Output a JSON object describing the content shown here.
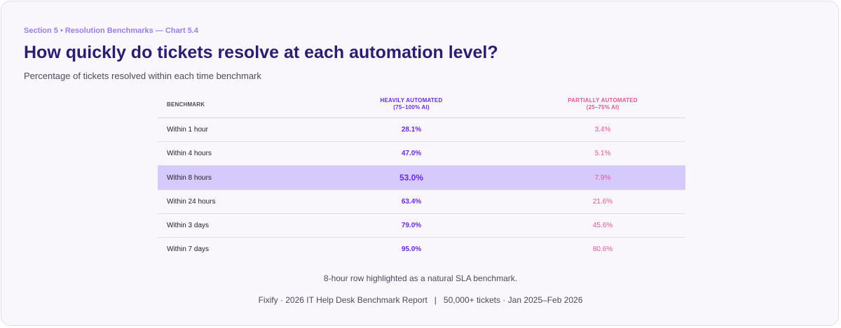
{
  "header": {
    "eyebrow": "Section 5 • Resolution Benchmarks — Chart 5.4",
    "title": "How quickly do tickets resolve at each automation level?",
    "subtitle": "Percentage of tickets resolved within each time benchmark"
  },
  "chart_data": {
    "type": "table",
    "columns": [
      {
        "label": "BENCHMARK",
        "sublabel": ""
      },
      {
        "label": "HEAVILY AUTOMATED",
        "sublabel": "(75–100% AI)"
      },
      {
        "label": "PARTIALLY AUTOMATED",
        "sublabel": "(25–75% AI)"
      }
    ],
    "rows": [
      {
        "benchmark": "Within 1 hour",
        "heavily": "28.1%",
        "partially": "3.4%"
      },
      {
        "benchmark": "Within 4 hours",
        "heavily": "47.0%",
        "partially": "5.1%"
      },
      {
        "benchmark": "Within 8 hours",
        "heavily": "53.0%",
        "partially": "7.9%"
      },
      {
        "benchmark": "Within 24 hours",
        "heavily": "63.4%",
        "partially": "21.6%"
      },
      {
        "benchmark": "Within 3 days",
        "heavily": "79.0%",
        "partially": "45.6%"
      },
      {
        "benchmark": "Within 7 days",
        "heavily": "95.0%",
        "partially": "80.6%"
      }
    ],
    "highlighted_row": 2,
    "colors": {
      "heavily": "#6a2ad8",
      "partially": "#e0559a",
      "highlight": "#d6c9fb"
    }
  },
  "note": "8-hour row highlighted as a natural SLA benchmark.",
  "footer": {
    "left": "Fixify · 2026 IT Help Desk Benchmark Report",
    "separator": "|",
    "right": "50,000+ tickets · Jan 2025–Feb 2026"
  }
}
